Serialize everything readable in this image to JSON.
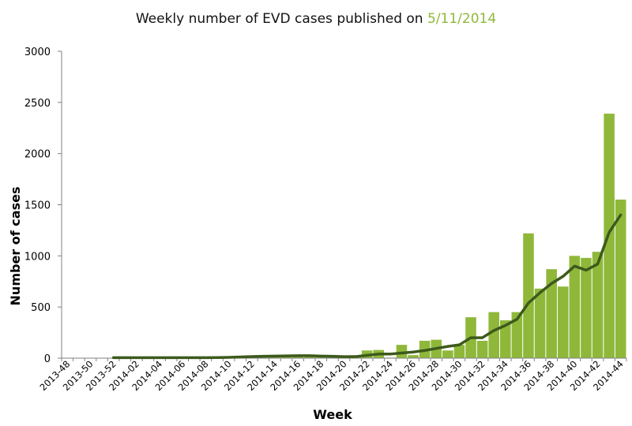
{
  "title": {
    "prefix": "Weekly number of EVD cases published on ",
    "highlight": "5/11/2014",
    "highlight_color": "#8fb83a"
  },
  "chart_data": {
    "type": "bar",
    "title": "Weekly number of EVD cases published on 5/11/2014",
    "xlabel": "Week",
    "ylabel": "Number of cases",
    "ylim": [
      0,
      3000
    ],
    "yticks": [
      0,
      500,
      1000,
      1500,
      2000,
      2500,
      3000
    ],
    "grid": false,
    "categories": [
      "2013-48",
      "2013-49",
      "2013-50",
      "2013-51",
      "2013-52",
      "2014-01",
      "2014-02",
      "2014-03",
      "2014-04",
      "2014-05",
      "2014-06",
      "2014-07",
      "2014-08",
      "2014-09",
      "2014-10",
      "2014-11",
      "2014-12",
      "2014-13",
      "2014-14",
      "2014-15",
      "2014-16",
      "2014-17",
      "2014-18",
      "2014-19",
      "2014-20",
      "2014-21",
      "2014-22",
      "2014-23",
      "2014-24",
      "2014-25",
      "2014-26",
      "2014-27",
      "2014-28",
      "2014-29",
      "2014-30",
      "2014-31",
      "2014-32",
      "2014-33",
      "2014-34",
      "2014-35",
      "2014-36",
      "2014-37",
      "2014-38",
      "2014-39",
      "2014-40",
      "2014-41",
      "2014-42",
      "2014-43",
      "2014-44"
    ],
    "tick_labels_shown": [
      "2013-48",
      "2013-50",
      "2013-52",
      "2014-02",
      "2014-04",
      "2014-06",
      "2014-08",
      "2014-10",
      "2014-12",
      "2014-14",
      "2014-16",
      "2014-18",
      "2014-20",
      "2014-22",
      "2014-24",
      "2014-26",
      "2014-28",
      "2014-30",
      "2014-32",
      "2014-34",
      "2014-36",
      "2014-38",
      "2014-40",
      "2014-42",
      "2014-44"
    ],
    "series": [
      {
        "kind": "bar",
        "color": "#8fb83a",
        "values": [
          0,
          0,
          0,
          0,
          3,
          5,
          5,
          5,
          5,
          5,
          5,
          5,
          5,
          5,
          10,
          15,
          20,
          20,
          25,
          25,
          25,
          25,
          15,
          15,
          10,
          10,
          75,
          80,
          5,
          130,
          30,
          170,
          180,
          75,
          130,
          400,
          170,
          450,
          370,
          450,
          1220,
          680,
          870,
          700,
          1000,
          980,
          1040,
          2390,
          1550
        ]
      },
      {
        "kind": "line",
        "color": "#3d5a1c",
        "values": [
          null,
          null,
          null,
          null,
          5,
          5,
          5,
          5,
          5,
          5,
          5,
          5,
          5,
          6,
          8,
          12,
          15,
          18,
          20,
          22,
          24,
          24,
          20,
          18,
          14,
          15,
          28,
          40,
          40,
          50,
          60,
          75,
          95,
          115,
          130,
          200,
          200,
          270,
          320,
          380,
          540,
          640,
          730,
          800,
          900,
          860,
          920,
          1230,
          1400
        ]
      }
    ]
  }
}
